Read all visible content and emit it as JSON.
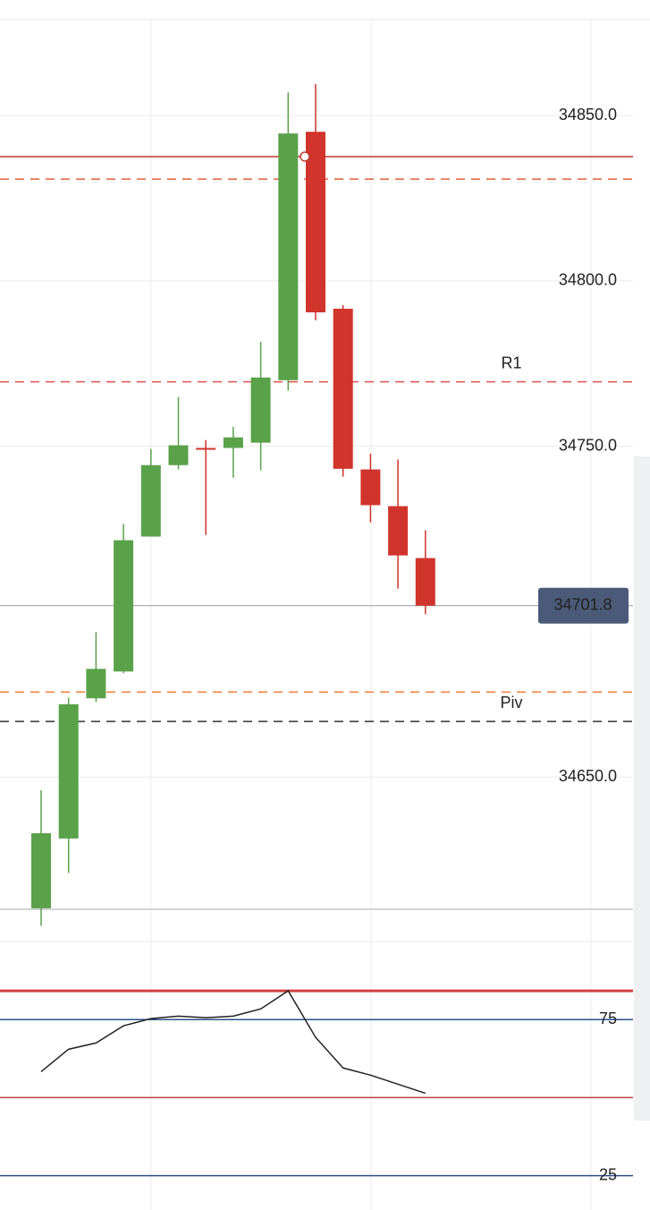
{
  "chart_data": [
    {
      "type": "candlestick",
      "categories": [
        null,
        null,
        null,
        null,
        null,
        null,
        null,
        null,
        null,
        null,
        null,
        null,
        null,
        null,
        null
      ],
      "open": [
        34610.3,
        34631.4,
        34673.8,
        34681.9,
        34722.7,
        34744.3,
        34749.5,
        34749.5,
        34751.1,
        34770,
        34845.1,
        34791.6,
        34743,
        34731.9,
        34716.2
      ],
      "high": [
        34646,
        34674,
        34693.8,
        34726.5,
        34749.2,
        34764.9,
        34751.9,
        34755.9,
        34781.6,
        34857,
        34859.5,
        34792.7,
        34747.8,
        34746,
        34724.6
      ],
      "low": [
        34605,
        34621,
        34672.7,
        34681.4,
        34722.7,
        34743,
        34723.2,
        34740.5,
        34742.7,
        34766.8,
        34788.1,
        34740.8,
        34727,
        34707,
        34699.2
      ],
      "close": [
        34633,
        34672,
        34682.7,
        34721.6,
        34744.3,
        34750.3,
        34749,
        34752.7,
        34770.8,
        34844.6,
        34790.5,
        34743.2,
        34732.2,
        34717,
        34701.8
      ],
      "up_color": "#5aa24a",
      "down_color": "#d0342c",
      "ylim": [
        34610,
        34879
      ],
      "yticks": [
        {
          "value": 34650,
          "label": "34650.0"
        },
        {
          "value": 34750,
          "label": "34750.0"
        },
        {
          "value": 34800,
          "label": "34800.0"
        },
        {
          "value": 34850,
          "label": "34850.0"
        }
      ],
      "levels": [
        {
          "value": 34837.6,
          "color": "#c0392b",
          "style": "solid"
        },
        {
          "value": 34830.8,
          "color": "#e0603a",
          "style": "dashed"
        },
        {
          "name": "R1",
          "value": 34769.5,
          "color": "#e05050",
          "style": "dashed"
        },
        {
          "value": 34675.7,
          "color": "#f08040",
          "style": "dashed"
        },
        {
          "name": "Piv",
          "value": 34666.8,
          "color": "#333333",
          "style": "dashed"
        }
      ],
      "last_price": 34701.8,
      "grid": true
    },
    {
      "type": "line",
      "categories": [
        null,
        null,
        null,
        null,
        null,
        null,
        null,
        null,
        null,
        null,
        null,
        null,
        null,
        null,
        null
      ],
      "values": [
        58.3,
        65.5,
        67.5,
        73,
        75.3,
        76.1,
        75.6,
        76.1,
        78.4,
        84.2,
        69.3,
        59.5,
        57.2,
        54.3,
        51.4
      ],
      "color": "#222222",
      "ylim": [
        14,
        100
      ],
      "yticks": [
        25,
        75
      ],
      "levels": [
        {
          "value": 84.2,
          "color": "#d04040"
        },
        {
          "value": 50,
          "color": "#c04040"
        }
      ]
    }
  ]
}
